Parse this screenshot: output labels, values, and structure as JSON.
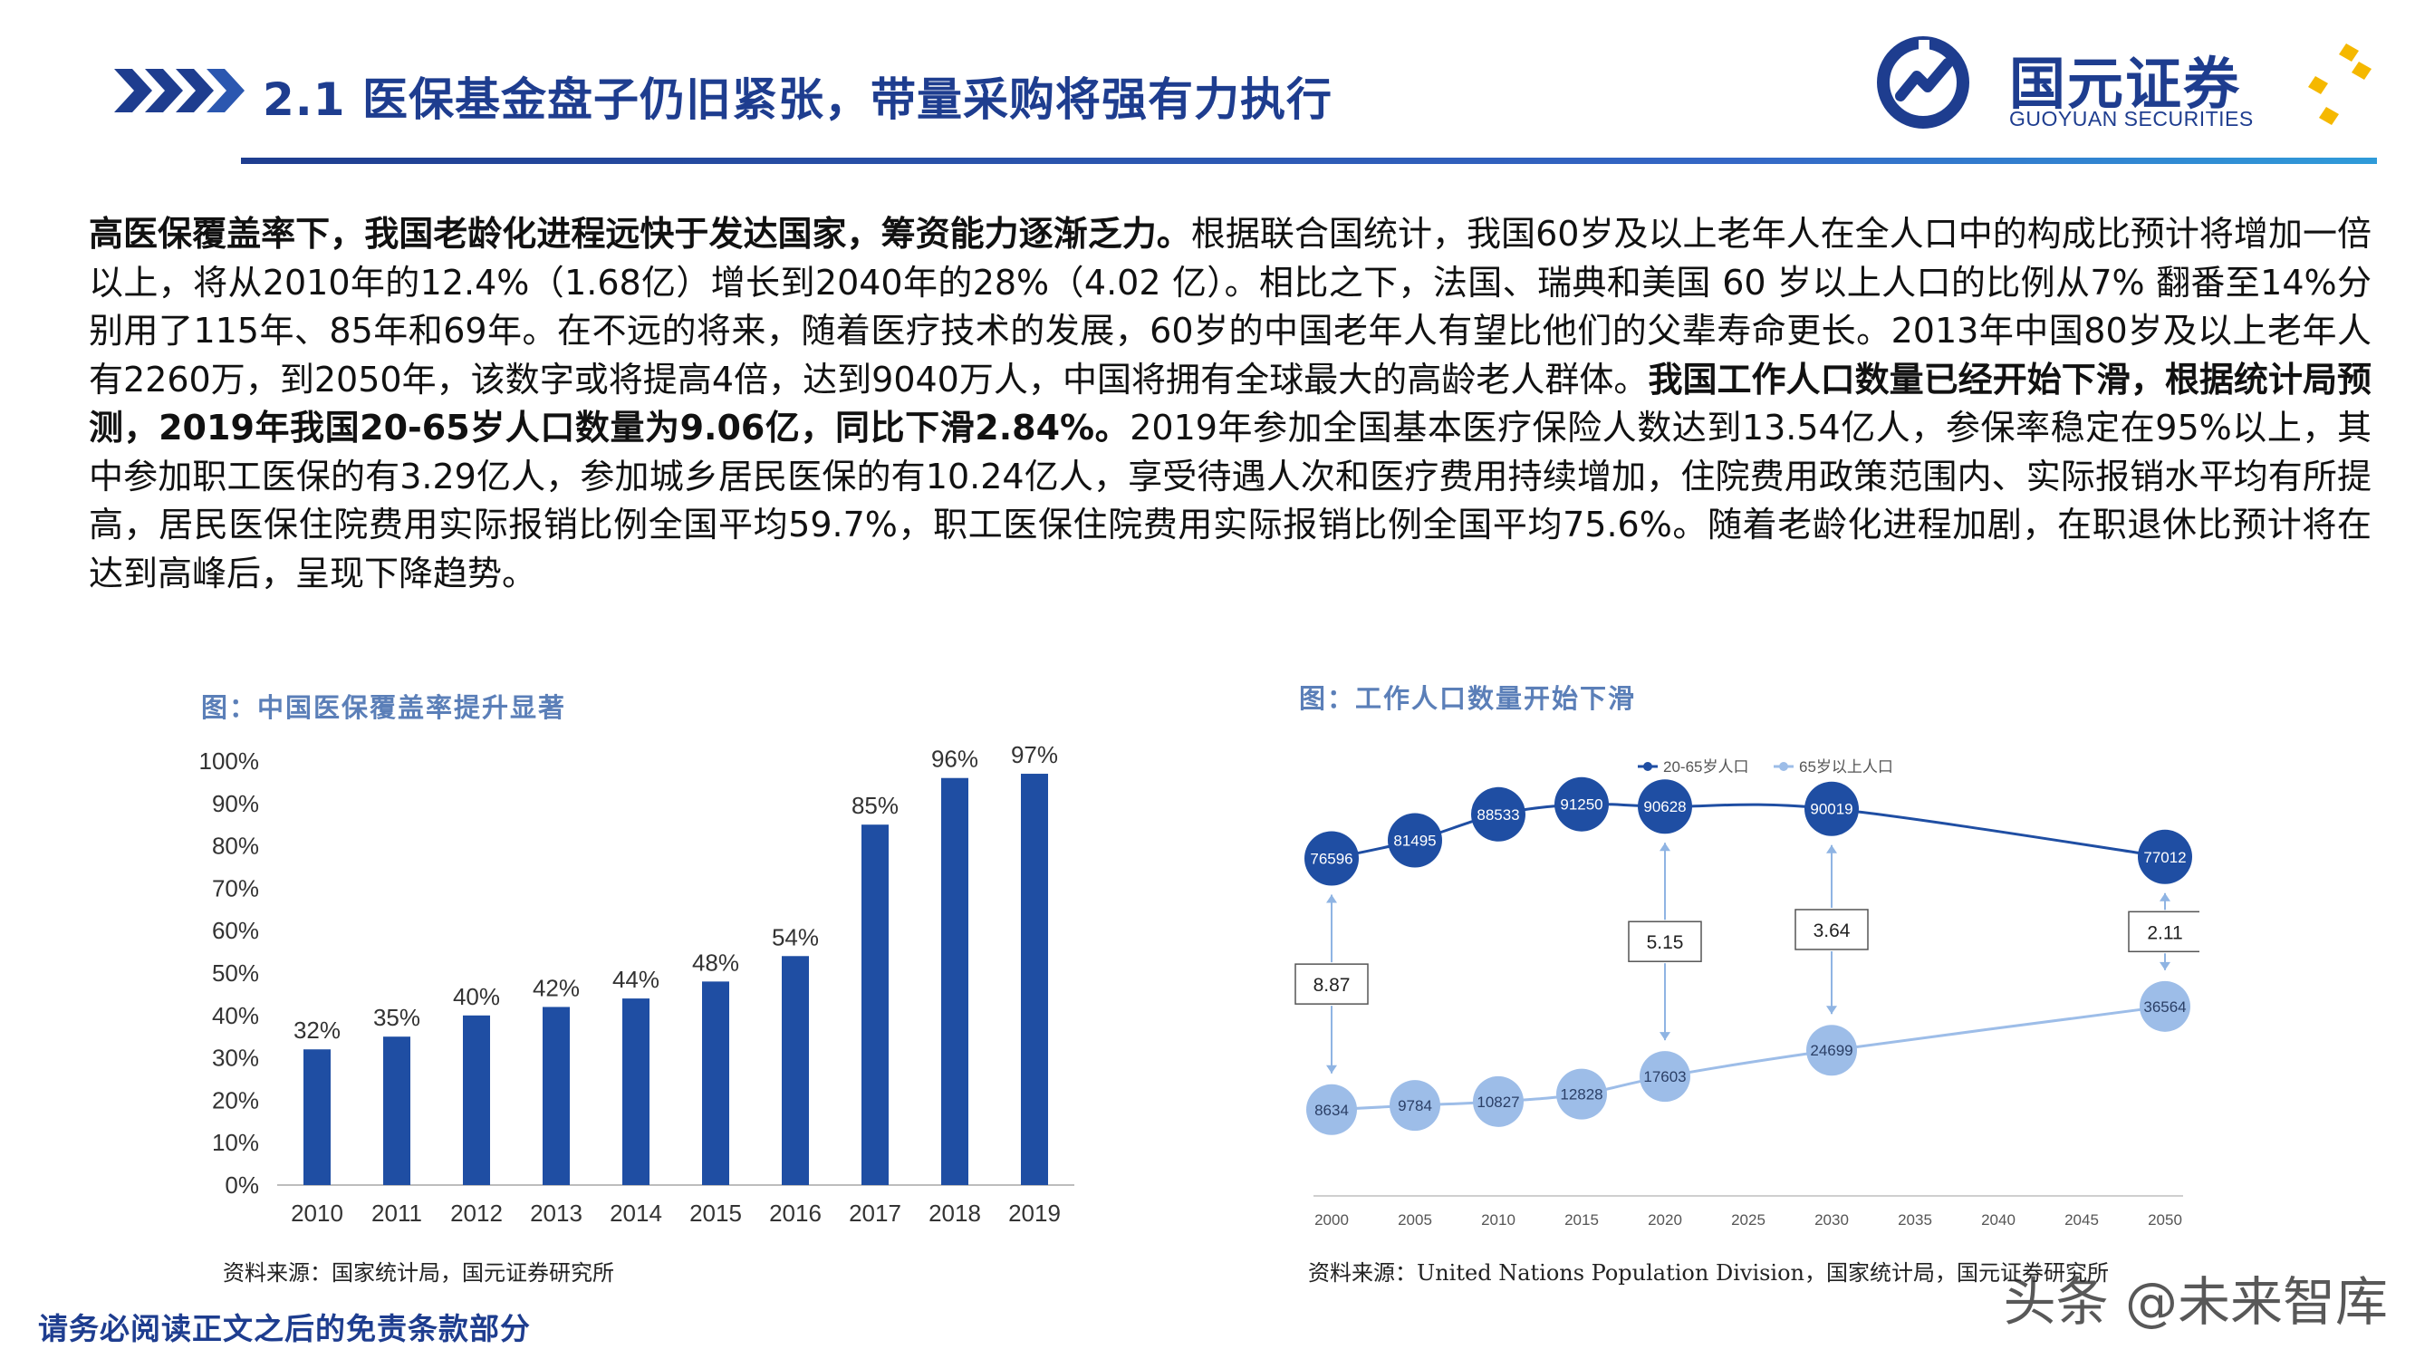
{
  "header": {
    "title": "2.1 医保基金盘子仍旧紧张，带量采购将强有力执行",
    "brand_cn": "国元证券",
    "brand_en": "GUOYUAN SECURITIES",
    "colors": {
      "primary": "#1e3d8f",
      "accent": "#f5b800",
      "light": "#8fb4e3"
    }
  },
  "paragraph": {
    "p1_bold": "高医保覆盖率下，我国老龄化进程远快于发达国家，筹资能力逐渐乏力。",
    "p2": "根据联合国统计，我国60岁及以上老年人在全人口中的构成比预计将增加一倍以上，将从2010年的12.4%（1.68亿）增长到2040年的28%（4.02 亿）。相比之下，法国、瑞典和美国 60 岁以上人口的比例从7% 翻番至14%分别用了115年、85年和69年。在不远的将来，随着医疗技术的发展，60岁的中国老年人有望比他们的父辈寿命更长。2013年中国80岁及以上老年人有2260万，到2050年，该数字或将提高4倍，达到9040万人，中国将拥有全球最大的高龄老人群体。",
    "p3_bold": "我国工作人口数量已经开始下滑，根据统计局预测，2019年我国20-65岁人口数量为9.06亿，同比下滑2.84%。",
    "p4": "2019年参加全国基本医疗保险人数达到13.54亿人，参保率稳定在95%以上，其中参加职工医保的有3.29亿人，参加城乡居民医保的有10.24亿人，享受待遇人次和医疗费用持续增加，住院费用政策范围内、实际报销水平均有所提高，居民医保住院费用实际报销比例全国平均59.7%，职工医保住院费用实际报销比例全国平均75.6%。随着老龄化进程加剧，在职退休比预计将在达到高峰后，呈现下降趋势。"
  },
  "figure1": {
    "caption": "图：中国医保覆盖率提升显著",
    "source": "资料来源：国家统计局，国元证券研究所"
  },
  "figure2": {
    "caption": "图：工作人口数量开始下滑",
    "source": "资料来源：United Nations Population Division，国家统计局，国元证券研究所"
  },
  "footer": {
    "disclaimer": "请务必阅读正文之后的免责条款部分",
    "watermark": "头条 @未来智库"
  },
  "chart_data": [
    {
      "type": "bar",
      "title": "",
      "categories": [
        "2010",
        "2011",
        "2012",
        "2013",
        "2014",
        "2015",
        "2016",
        "2017",
        "2018",
        "2019"
      ],
      "values": [
        32,
        35,
        40,
        42,
        44,
        48,
        54,
        85,
        96,
        97
      ],
      "data_labels": [
        "32%",
        "35%",
        "40%",
        "42%",
        "44%",
        "48%",
        "54%",
        "85%",
        "96%",
        "97%"
      ],
      "ylim": [
        0,
        100
      ],
      "yticks": [
        "0%",
        "10%",
        "20%",
        "30%",
        "40%",
        "50%",
        "60%",
        "70%",
        "80%",
        "90%",
        "100%"
      ],
      "color": "#1f4ea3",
      "grid": false
    },
    {
      "type": "line",
      "title": "",
      "x_ticks": [
        "2000",
        "2005",
        "2010",
        "2015",
        "2020",
        "2025",
        "2030",
        "2035",
        "2040",
        "2045",
        "2050"
      ],
      "xlim": [
        2000,
        2050
      ],
      "legend_position": "top-center",
      "series": [
        {
          "name": "20-65岁人口",
          "color": "#1f4ea3",
          "x": [
            2000,
            2005,
            2010,
            2015,
            2020,
            2030,
            2050
          ],
          "values": [
            76596,
            81495,
            88533,
            91250,
            90628,
            90019,
            77012
          ]
        },
        {
          "name": "65岁以上人口",
          "color": "#9dbde8",
          "x": [
            2000,
            2005,
            2010,
            2015,
            2020,
            2030,
            2050
          ],
          "values": [
            8634,
            9784,
            10827,
            12828,
            17603,
            24699,
            36564
          ]
        }
      ],
      "ratio_annotations": [
        {
          "x": 2000,
          "label": "8.87"
        },
        {
          "x": 2020,
          "label": "5.15"
        },
        {
          "x": 2030,
          "label": "3.64"
        },
        {
          "x": 2050,
          "label": "2.11"
        }
      ]
    }
  ]
}
